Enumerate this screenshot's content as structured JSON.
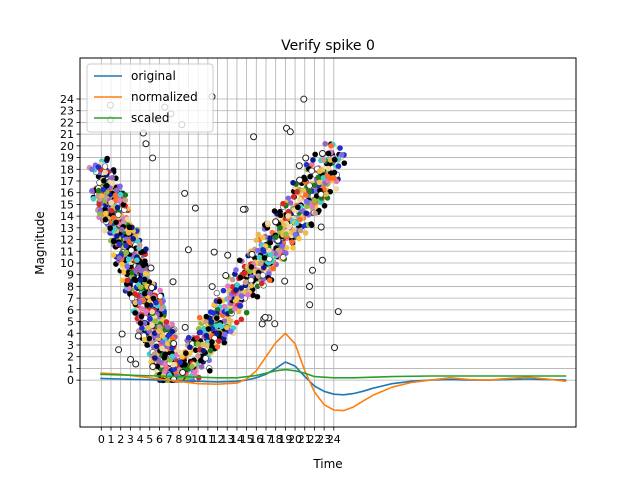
{
  "chart_data": {
    "type": "line",
    "title": "Verify spike 0",
    "xlabel": "Time",
    "ylabel": "Magnitude",
    "xlim": [
      -2.2,
      49
    ],
    "ylim": [
      -4,
      27.5
    ],
    "x_ticks": [
      0,
      1,
      2,
      3,
      4,
      5,
      6,
      7,
      8,
      9,
      10,
      11,
      12,
      13,
      14,
      15,
      16,
      17,
      18,
      19,
      20,
      21,
      22,
      23,
      24
    ],
    "y_ticks": [
      0,
      1,
      2,
      3,
      4,
      5,
      6,
      7,
      8,
      9,
      10,
      11,
      12,
      13,
      14,
      15,
      16,
      17,
      18,
      19,
      20,
      21,
      22,
      23,
      24
    ],
    "grid": true,
    "legend_position": "top-left",
    "series": [
      {
        "name": "original",
        "color": "#1f77b4",
        "x": [
          -0.1,
          2,
          4,
          6,
          8,
          10,
          12,
          14,
          15,
          16,
          17,
          18,
          19,
          20,
          21,
          22,
          23,
          24,
          25,
          26,
          27,
          28,
          30,
          32,
          34,
          36,
          38,
          40,
          42,
          44,
          46,
          48
        ],
        "y": [
          0.15,
          0.1,
          0.05,
          0.0,
          -0.05,
          -0.1,
          -0.15,
          -0.1,
          0.0,
          0.2,
          0.5,
          1.0,
          1.55,
          1.2,
          0.3,
          -0.5,
          -0.95,
          -1.2,
          -1.25,
          -1.15,
          -0.95,
          -0.7,
          -0.3,
          -0.1,
          0.0,
          0.05,
          0.0,
          0.0,
          0.05,
          0.1,
          0.05,
          0.0
        ]
      },
      {
        "name": "normalized",
        "color": "#ff7f0e",
        "x": [
          -0.1,
          2,
          4,
          6,
          8,
          10,
          12,
          14,
          15,
          16,
          17,
          18,
          19,
          20,
          21,
          22,
          23,
          24,
          25,
          26,
          27,
          28,
          30,
          32,
          34,
          36,
          38,
          40,
          42,
          44,
          46,
          48
        ],
        "y": [
          0.6,
          0.5,
          0.3,
          0.1,
          -0.1,
          -0.3,
          -0.35,
          -0.25,
          0.1,
          0.8,
          2.0,
          3.2,
          4.0,
          3.1,
          0.8,
          -1.0,
          -2.1,
          -2.55,
          -2.6,
          -2.3,
          -1.8,
          -1.3,
          -0.6,
          -0.2,
          0.0,
          0.2,
          0.05,
          0.0,
          0.15,
          0.25,
          0.1,
          -0.1
        ]
      },
      {
        "name": "scaled",
        "color": "#2ca02c",
        "x": [
          -0.1,
          2,
          4,
          6,
          8,
          10,
          12,
          14,
          16,
          18,
          19,
          20,
          21,
          22,
          24,
          26,
          28,
          30,
          34,
          38,
          42,
          46,
          48
        ],
        "y": [
          0.5,
          0.45,
          0.4,
          0.35,
          0.3,
          0.25,
          0.2,
          0.2,
          0.4,
          0.8,
          0.9,
          0.8,
          0.6,
          0.3,
          0.2,
          0.2,
          0.25,
          0.3,
          0.35,
          0.35,
          0.35,
          0.35,
          0.35
        ]
      }
    ]
  }
}
